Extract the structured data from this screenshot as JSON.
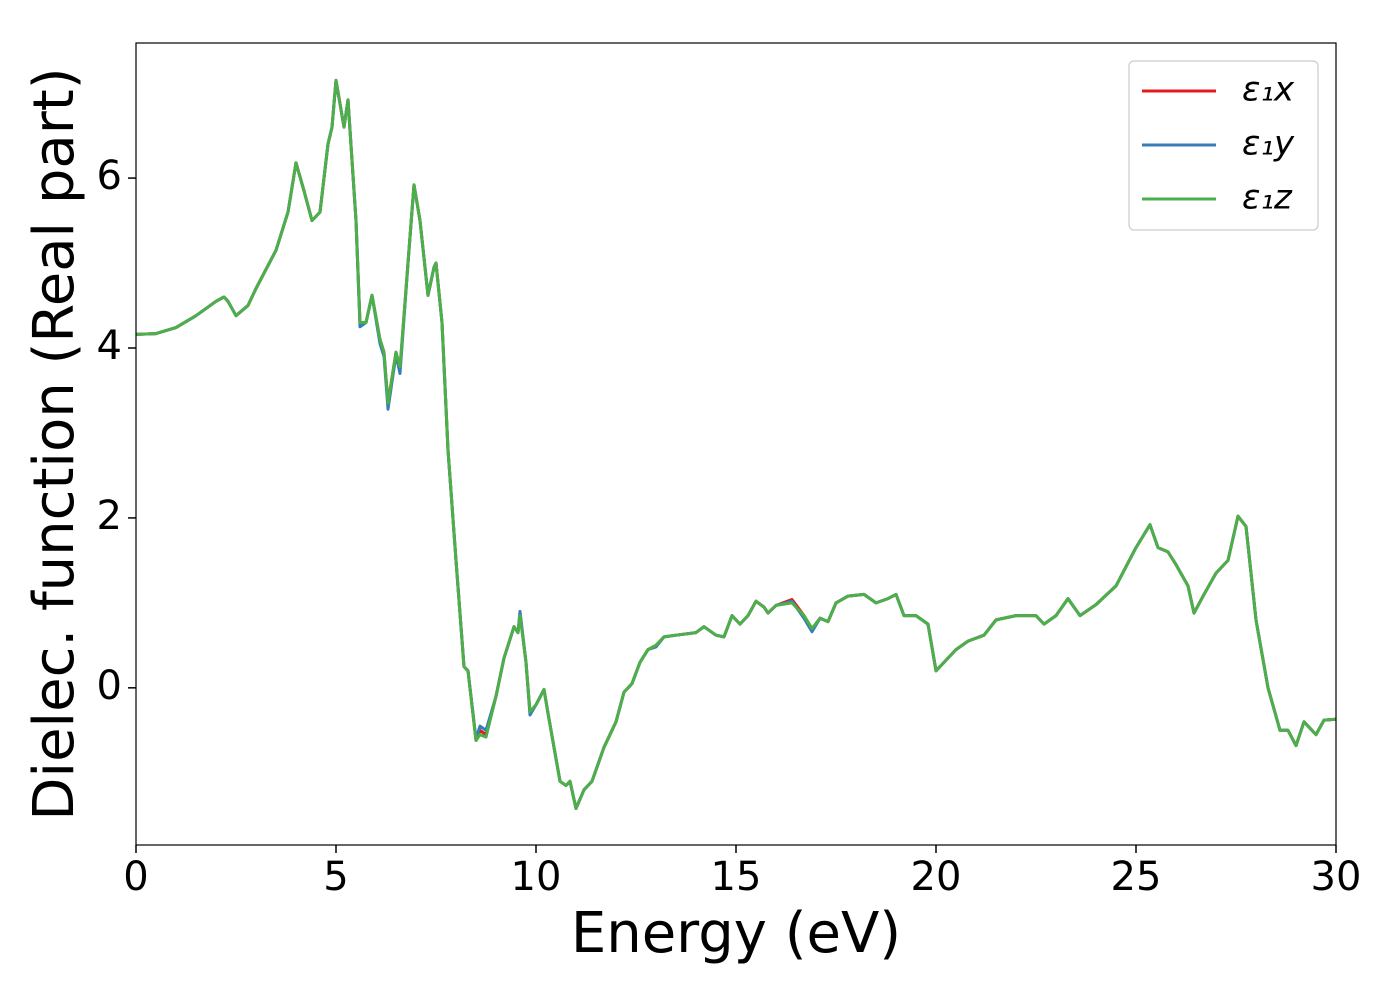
{
  "chart_data": {
    "type": "line",
    "xlabel": "Energy (eV)",
    "ylabel": "Dielec. function (Real part)",
    "xlim": [
      0,
      30
    ],
    "ylim": [
      -1.85,
      7.59
    ],
    "xticks": [
      0,
      5,
      10,
      15,
      20,
      25,
      30
    ],
    "yticks": [
      0,
      2,
      4,
      6
    ],
    "legend": "upper right",
    "x": [
      0,
      0.5,
      1.0,
      1.5,
      2.0,
      2.2,
      2.3,
      2.5,
      2.8,
      3.0,
      3.5,
      3.8,
      4.0,
      4.2,
      4.4,
      4.6,
      4.8,
      4.9,
      5.0,
      5.2,
      5.3,
      5.5,
      5.6,
      5.75,
      5.9,
      6.1,
      6.2,
      6.3,
      6.5,
      6.6,
      6.8,
      6.95,
      7.1,
      7.3,
      7.45,
      7.5,
      7.65,
      7.8,
      8.0,
      8.2,
      8.3,
      8.5,
      8.6,
      8.75,
      9.0,
      9.2,
      9.45,
      9.55,
      9.6,
      9.75,
      9.85,
      10.0,
      10.2,
      10.3,
      10.6,
      10.75,
      10.85,
      11.0,
      11.2,
      11.4,
      11.7,
      12.0,
      12.2,
      12.4,
      12.6,
      12.8,
      13.0,
      13.2,
      13.5,
      14.0,
      14.2,
      14.5,
      14.7,
      14.9,
      15.1,
      15.3,
      15.5,
      15.7,
      15.8,
      16.0,
      16.4,
      16.7,
      16.9,
      17.1,
      17.3,
      17.5,
      17.8,
      18.2,
      18.5,
      18.8,
      19.0,
      19.2,
      19.5,
      19.8,
      20.0,
      20.3,
      20.5,
      20.8,
      21.2,
      21.5,
      22.0,
      22.5,
      22.7,
      23.0,
      23.3,
      23.6,
      24.0,
      24.5,
      25.0,
      25.35,
      25.55,
      25.8,
      26.0,
      26.3,
      26.45,
      26.7,
      27.0,
      27.3,
      27.55,
      27.75,
      28.0,
      28.3,
      28.6,
      28.8,
      29.0,
      29.2,
      29.5,
      29.7,
      30.0
    ],
    "series": [
      {
        "name": "ε₁x",
        "color": "#e41a1c",
        "values": [
          4.16,
          4.17,
          4.24,
          4.38,
          4.55,
          4.6,
          4.55,
          4.38,
          4.5,
          4.7,
          5.15,
          5.6,
          6.18,
          5.85,
          5.5,
          5.6,
          6.4,
          6.6,
          7.15,
          6.6,
          6.92,
          5.5,
          4.3,
          4.3,
          4.62,
          4.1,
          3.95,
          3.35,
          3.95,
          3.75,
          5.0,
          5.92,
          5.5,
          4.62,
          4.95,
          5.0,
          4.3,
          2.8,
          1.5,
          0.25,
          0.2,
          -0.62,
          -0.5,
          -0.55,
          -0.1,
          0.35,
          0.72,
          0.65,
          0.88,
          0.3,
          -0.3,
          -0.2,
          -0.02,
          -0.3,
          -1.1,
          -1.15,
          -1.1,
          -1.42,
          -1.2,
          -1.1,
          -0.7,
          -0.4,
          -0.05,
          0.05,
          0.3,
          0.45,
          0.5,
          0.6,
          0.62,
          0.65,
          0.72,
          0.62,
          0.6,
          0.85,
          0.75,
          0.85,
          1.02,
          0.95,
          0.88,
          0.97,
          1.04,
          0.85,
          0.68,
          0.82,
          0.78,
          1.0,
          1.08,
          1.1,
          1.0,
          1.05,
          1.1,
          0.85,
          0.85,
          0.75,
          0.2,
          0.35,
          0.45,
          0.55,
          0.62,
          0.8,
          0.85,
          0.85,
          0.75,
          0.85,
          1.05,
          0.85,
          0.98,
          1.2,
          1.65,
          1.92,
          1.65,
          1.6,
          1.45,
          1.2,
          0.88,
          1.1,
          1.35,
          1.5,
          2.02,
          1.9,
          0.8,
          0.0,
          -0.5,
          -0.5,
          -0.68,
          -0.4,
          -0.55,
          -0.38,
          -0.37
        ]
      },
      {
        "name": "ε₁y",
        "color": "#377eb8",
        "values": [
          4.16,
          4.17,
          4.24,
          4.38,
          4.55,
          4.6,
          4.55,
          4.38,
          4.5,
          4.7,
          5.15,
          5.6,
          6.18,
          5.85,
          5.5,
          5.6,
          6.4,
          6.6,
          7.15,
          6.6,
          6.92,
          5.5,
          4.25,
          4.3,
          4.62,
          4.05,
          3.9,
          3.28,
          3.92,
          3.7,
          5.0,
          5.92,
          5.5,
          4.62,
          4.95,
          5.0,
          4.3,
          2.8,
          1.5,
          0.25,
          0.2,
          -0.6,
          -0.45,
          -0.5,
          -0.1,
          0.35,
          0.72,
          0.65,
          0.9,
          0.3,
          -0.32,
          -0.2,
          -0.02,
          -0.3,
          -1.1,
          -1.15,
          -1.1,
          -1.42,
          -1.2,
          -1.1,
          -0.7,
          -0.4,
          -0.05,
          0.05,
          0.3,
          0.45,
          0.48,
          0.6,
          0.62,
          0.65,
          0.72,
          0.62,
          0.6,
          0.85,
          0.75,
          0.85,
          1.02,
          0.95,
          0.88,
          0.97,
          1.02,
          0.82,
          0.66,
          0.82,
          0.78,
          1.0,
          1.08,
          1.1,
          1.0,
          1.05,
          1.1,
          0.85,
          0.85,
          0.75,
          0.2,
          0.35,
          0.45,
          0.55,
          0.62,
          0.8,
          0.85,
          0.85,
          0.75,
          0.85,
          1.05,
          0.85,
          0.98,
          1.2,
          1.65,
          1.92,
          1.65,
          1.6,
          1.45,
          1.2,
          0.88,
          1.1,
          1.35,
          1.5,
          2.02,
          1.9,
          0.8,
          0.0,
          -0.5,
          -0.5,
          -0.68,
          -0.4,
          -0.55,
          -0.38,
          -0.37
        ]
      },
      {
        "name": "ε₁z",
        "color": "#4daf4a",
        "values": [
          4.16,
          4.17,
          4.24,
          4.38,
          4.55,
          4.6,
          4.55,
          4.38,
          4.5,
          4.7,
          5.15,
          5.6,
          6.18,
          5.85,
          5.5,
          5.6,
          6.4,
          6.6,
          7.15,
          6.6,
          6.92,
          5.5,
          4.3,
          4.3,
          4.62,
          4.1,
          3.95,
          3.35,
          3.95,
          3.78,
          5.0,
          5.92,
          5.5,
          4.62,
          4.95,
          5.0,
          4.3,
          2.8,
          1.5,
          0.25,
          0.2,
          -0.62,
          -0.55,
          -0.58,
          -0.1,
          0.35,
          0.72,
          0.65,
          0.85,
          0.3,
          -0.28,
          -0.2,
          -0.02,
          -0.3,
          -1.1,
          -1.15,
          -1.1,
          -1.42,
          -1.2,
          -1.1,
          -0.7,
          -0.4,
          -0.05,
          0.05,
          0.3,
          0.45,
          0.5,
          0.6,
          0.62,
          0.65,
          0.72,
          0.62,
          0.6,
          0.85,
          0.75,
          0.85,
          1.02,
          0.95,
          0.88,
          0.97,
          1.0,
          0.85,
          0.7,
          0.82,
          0.78,
          1.0,
          1.08,
          1.1,
          1.0,
          1.05,
          1.1,
          0.85,
          0.85,
          0.75,
          0.2,
          0.35,
          0.45,
          0.55,
          0.62,
          0.8,
          0.85,
          0.85,
          0.75,
          0.85,
          1.05,
          0.85,
          0.98,
          1.2,
          1.65,
          1.92,
          1.65,
          1.6,
          1.45,
          1.2,
          0.88,
          1.1,
          1.35,
          1.5,
          2.02,
          1.9,
          0.8,
          0.0,
          -0.5,
          -0.5,
          -0.68,
          -0.4,
          -0.55,
          -0.38,
          -0.37
        ]
      }
    ]
  }
}
